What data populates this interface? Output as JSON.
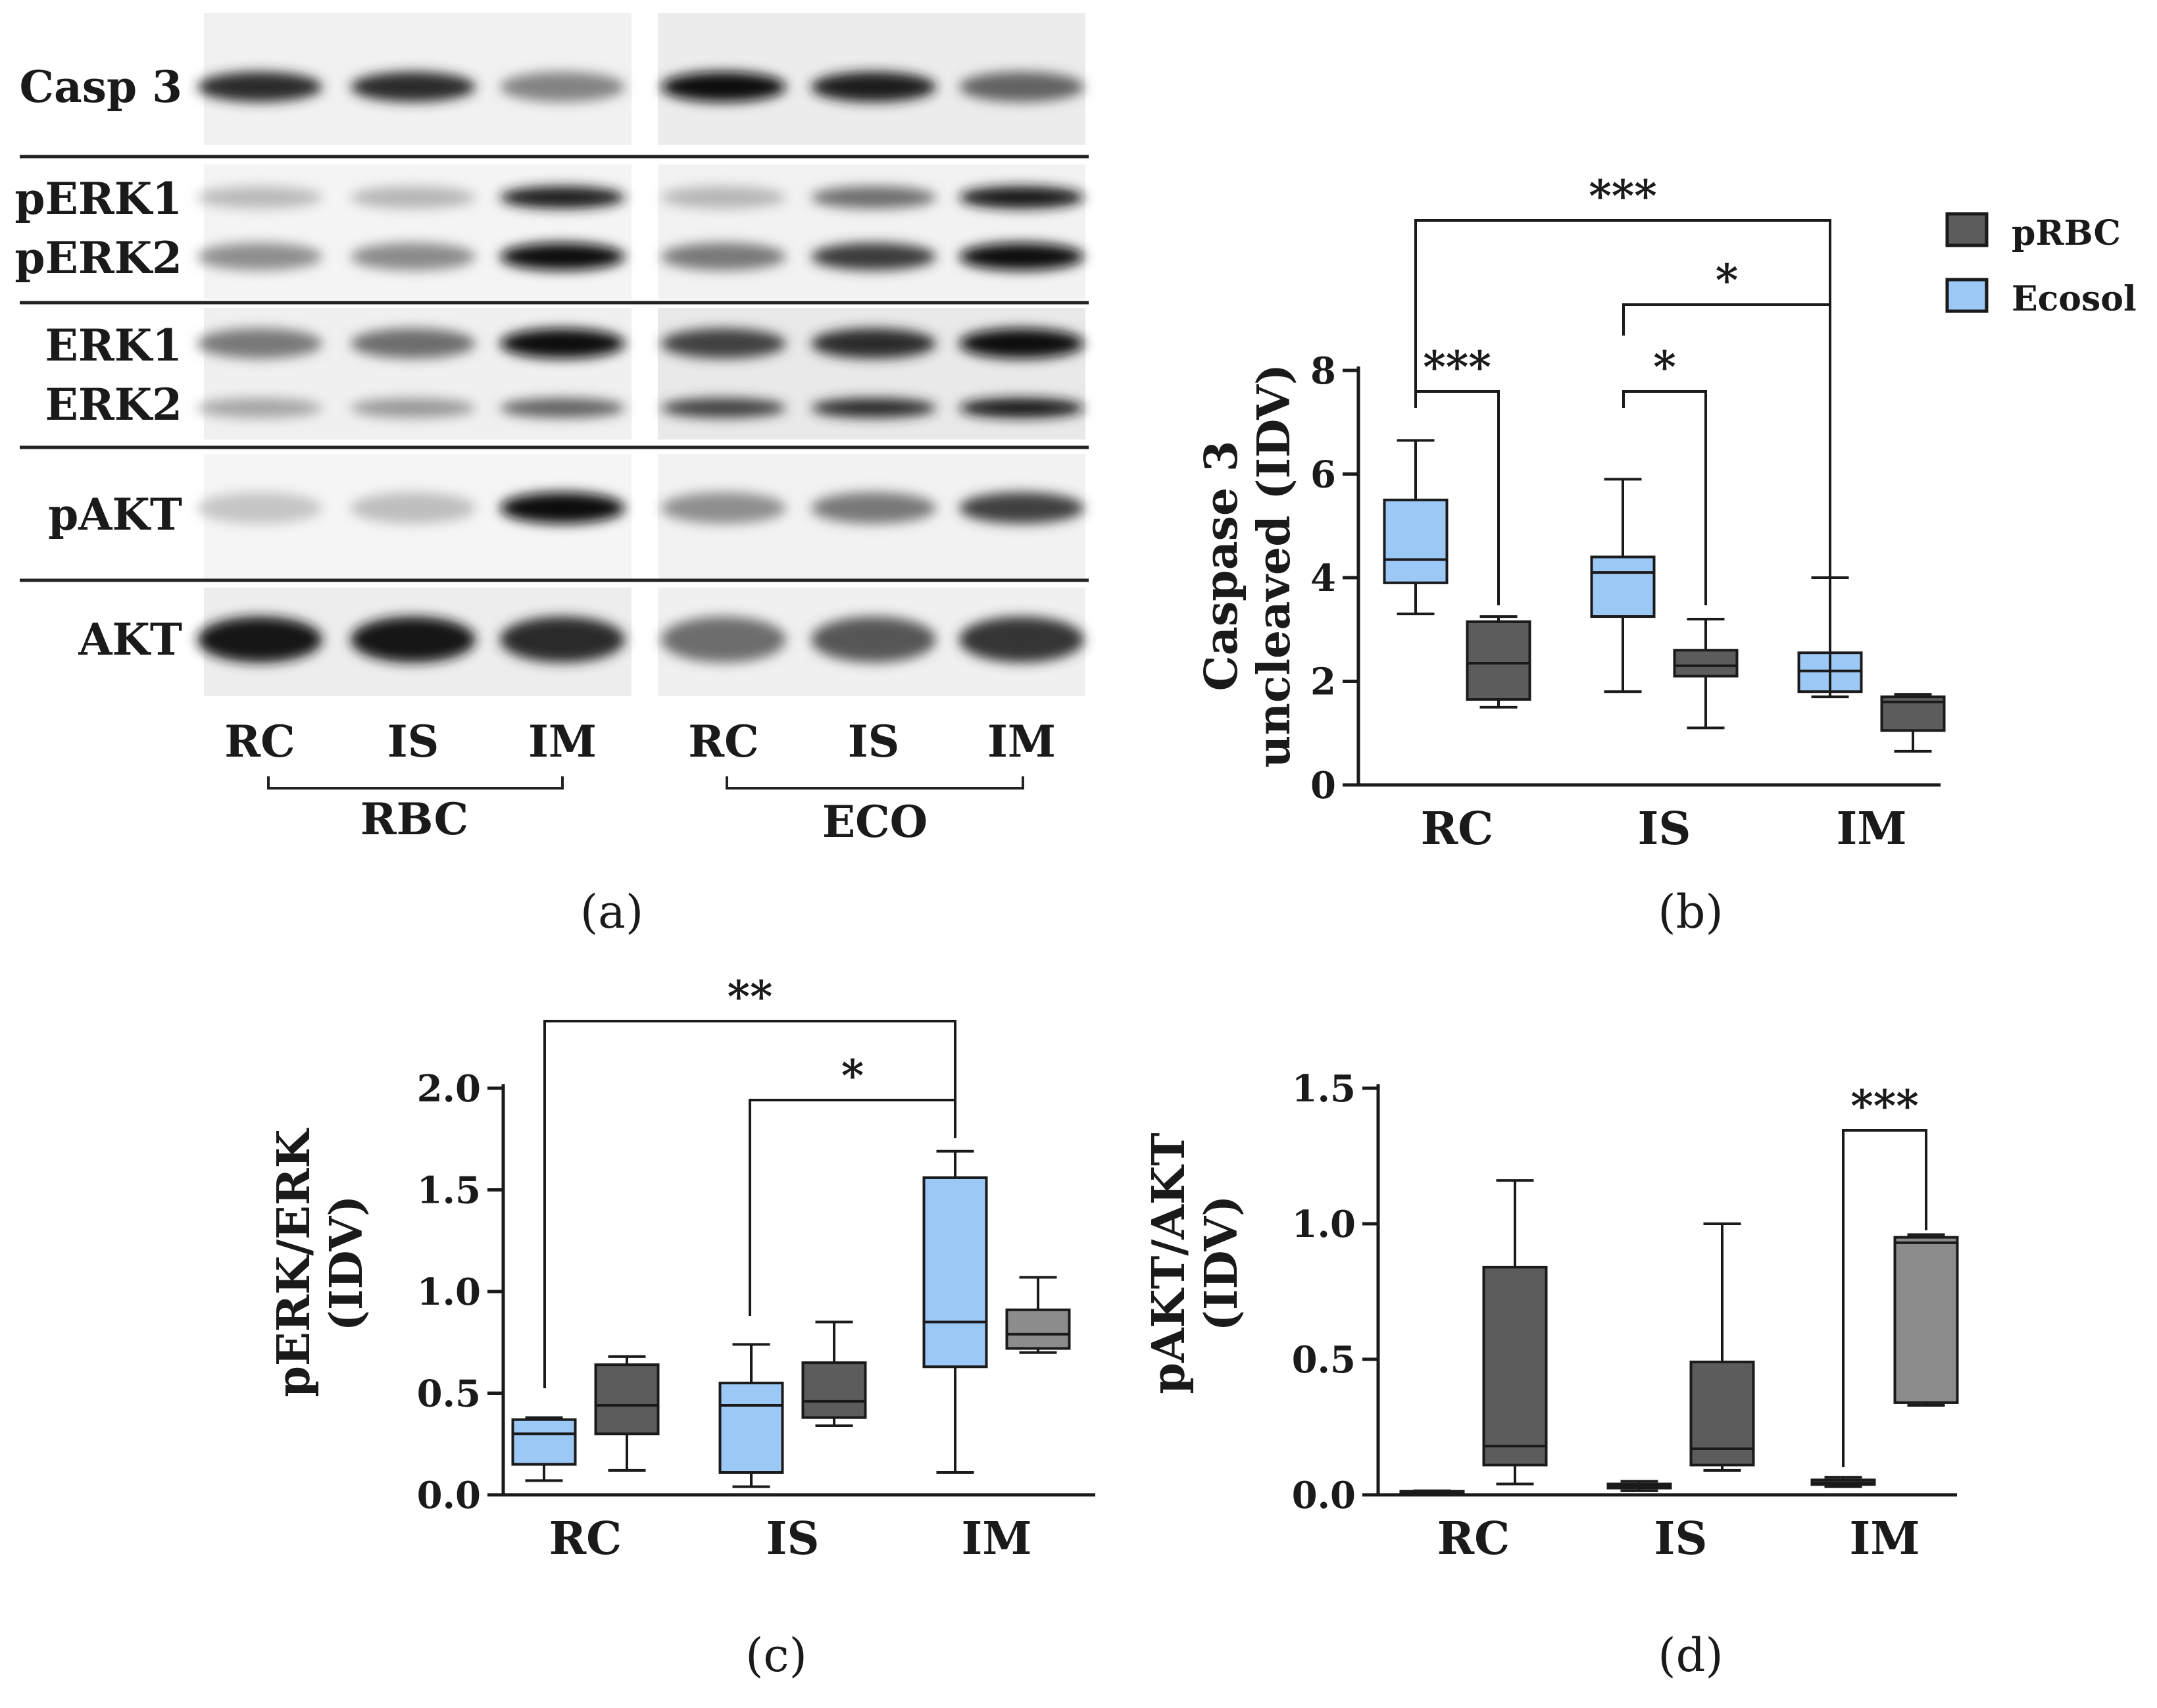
{
  "figure_labels": [
    "(a)",
    "(b)",
    "(c)",
    "(d)"
  ],
  "western_blot": {
    "rows": [
      {
        "labels": [
          "Casp 3"
        ]
      },
      {
        "labels": [
          "pERK1",
          "pERK2"
        ]
      },
      {
        "labels": [
          "ERK1",
          "ERK2"
        ]
      },
      {
        "labels": [
          "pAKT"
        ]
      },
      {
        "labels": [
          "AKT"
        ]
      }
    ],
    "lanes": [
      "RC",
      "IS",
      "IM",
      "RC",
      "IS",
      "IM"
    ],
    "groups": [
      "RBC",
      "ECO"
    ]
  },
  "colors": {
    "ecosol": "#9cc8f6",
    "prbc": "#5c5c5c",
    "prbc_light": "#8c8c8c"
  },
  "chart_data": [
    {
      "type": "box",
      "panel": "b",
      "ylabel": [
        "Caspase 3",
        "uncleaved (IDV)"
      ],
      "categories": [
        "RC",
        "IS",
        "IM"
      ],
      "ylim": [
        0,
        8
      ],
      "yticks": [
        "0",
        "2",
        "4",
        "6",
        "8"
      ],
      "legend": [
        {
          "name": "pRBC",
          "color": "#5c5c5c"
        },
        {
          "name": "Ecosol",
          "color": "#9cc8f6"
        }
      ],
      "legend_position": "top-right",
      "series": [
        {
          "name": "Ecosol",
          "boxes": [
            {
              "min": 3.3,
              "q1": 3.9,
              "median": 4.35,
              "q3": 5.5,
              "max": 6.65
            },
            {
              "min": 1.8,
              "q1": 3.25,
              "median": 4.1,
              "q3": 4.4,
              "max": 5.9
            },
            {
              "min": 1.7,
              "q1": 1.8,
              "median": 2.2,
              "q3": 2.55,
              "max": 4.0
            }
          ]
        },
        {
          "name": "pRBC",
          "boxes": [
            {
              "min": 1.5,
              "q1": 1.65,
              "median": 2.35,
              "q3": 3.15,
              "max": 3.25
            },
            {
              "min": 1.1,
              "q1": 2.1,
              "median": 2.3,
              "q3": 2.6,
              "max": 3.2
            },
            {
              "min": 0.65,
              "q1": 1.05,
              "median": 1.6,
              "q3": 1.7,
              "max": 1.75
            }
          ]
        }
      ],
      "annotations": [
        "***",
        "*",
        "***",
        "*"
      ]
    },
    {
      "type": "box",
      "panel": "c",
      "ylabel": [
        "pERK/ERK",
        "(IDV)"
      ],
      "categories": [
        "RC",
        "IS",
        "IM"
      ],
      "ylim": [
        0,
        2
      ],
      "yticks": [
        "0.0",
        "0.5",
        "1.0",
        "1.5",
        "2.0"
      ],
      "series": [
        {
          "name": "Ecosol",
          "boxes": [
            {
              "min": 0.07,
              "q1": 0.15,
              "median": 0.3,
              "q3": 0.37,
              "max": 0.38
            },
            {
              "min": 0.04,
              "q1": 0.11,
              "median": 0.44,
              "q3": 0.55,
              "max": 0.74
            },
            {
              "min": 0.11,
              "q1": 0.63,
              "median": 0.85,
              "q3": 1.56,
              "max": 1.69
            }
          ]
        },
        {
          "name": "pRBC",
          "boxes": [
            {
              "min": 0.12,
              "q1": 0.3,
              "median": 0.44,
              "q3": 0.64,
              "max": 0.68
            },
            {
              "min": 0.34,
              "q1": 0.38,
              "median": 0.46,
              "q3": 0.65,
              "max": 0.85
            },
            {
              "min": 0.7,
              "q1": 0.72,
              "median": 0.79,
              "q3": 0.91,
              "max": 1.07
            }
          ]
        }
      ],
      "annotations": [
        "**",
        "*"
      ]
    },
    {
      "type": "box",
      "panel": "d",
      "ylabel": [
        "pAKT/AKT",
        "(IDV)"
      ],
      "categories": [
        "RC",
        "IS",
        "IM"
      ],
      "ylim": [
        0,
        1.5
      ],
      "yticks": [
        "0.0",
        "0.5",
        "1.0",
        "1.5"
      ],
      "series": [
        {
          "name": "Ecosol",
          "boxes": [
            {
              "min": 0.005,
              "q1": 0.008,
              "median": 0.01,
              "q3": 0.013,
              "max": 0.015
            },
            {
              "min": 0.015,
              "q1": 0.025,
              "median": 0.032,
              "q3": 0.04,
              "max": 0.05
            },
            {
              "min": 0.03,
              "q1": 0.038,
              "median": 0.045,
              "q3": 0.055,
              "max": 0.065
            }
          ]
        },
        {
          "name": "pRBC",
          "boxes": [
            {
              "min": 0.04,
              "q1": 0.11,
              "median": 0.18,
              "q3": 0.84,
              "max": 1.16
            },
            {
              "min": 0.09,
              "q1": 0.11,
              "median": 0.17,
              "q3": 0.49,
              "max": 1.0
            },
            {
              "min": 0.33,
              "q1": 0.34,
              "median": 0.93,
              "q3": 0.95,
              "max": 0.96
            }
          ]
        }
      ],
      "annotations": [
        "***"
      ]
    }
  ]
}
